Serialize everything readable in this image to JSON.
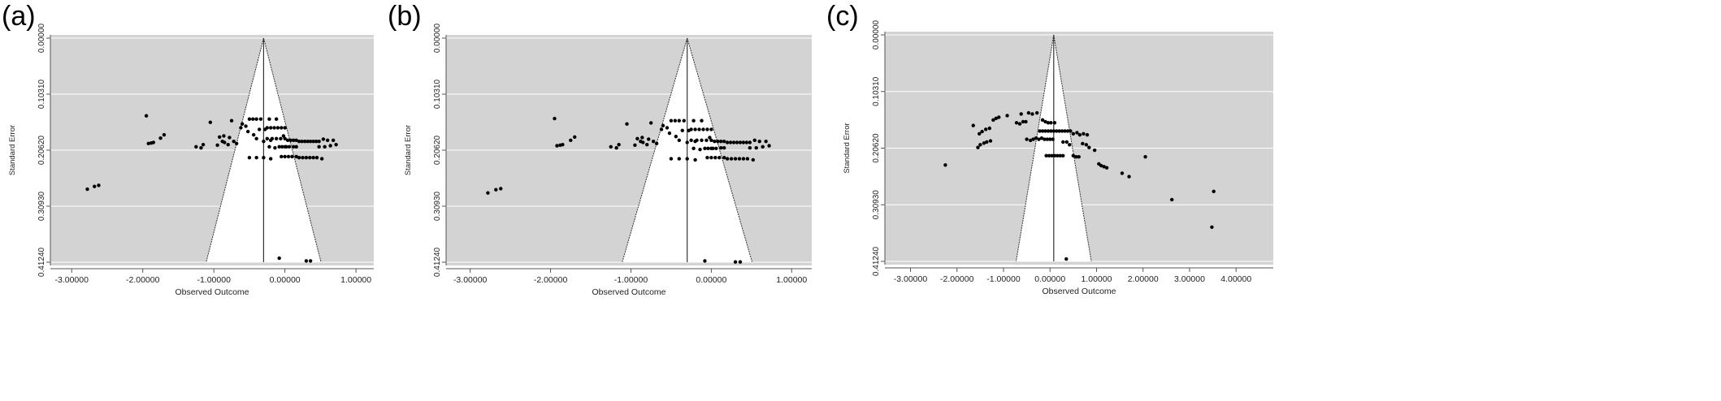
{
  "chart_data": [
    {
      "panel_label": "(a)",
      "type": "scatter",
      "subtype": "funnel plot",
      "xlabel": "Observed Outcome",
      "ylabel": "Standard Error",
      "xlim": [
        -3.3,
        1.25
      ],
      "ylim": [
        0.0,
        0.4124
      ],
      "y_reversed": true,
      "x_ticks": [
        "-3.00000",
        "-2.00000",
        "-1.00000",
        "0.00000",
        "1.00000"
      ],
      "x_tick_values": [
        -3,
        -2,
        -1,
        0,
        1
      ],
      "y_ticks": [
        "0.00000",
        "0.10310",
        "0.20620",
        "0.30930",
        "0.41240"
      ],
      "y_tick_values": [
        0,
        0.1031,
        0.2062,
        0.3093,
        0.4124
      ],
      "grid": true,
      "center": -0.3,
      "points": [
        [
          -2.78,
          0.278
        ],
        [
          -2.68,
          0.273
        ],
        [
          -2.62,
          0.271
        ],
        [
          -1.92,
          0.194
        ],
        [
          -1.88,
          0.193
        ],
        [
          -1.85,
          0.192
        ],
        [
          -1.95,
          0.143
        ],
        [
          -1.75,
          0.184
        ],
        [
          -1.7,
          0.178
        ],
        [
          -1.25,
          0.2
        ],
        [
          -1.18,
          0.202
        ],
        [
          -1.15,
          0.196
        ],
        [
          -1.05,
          0.155
        ],
        [
          -0.95,
          0.197
        ],
        [
          -0.88,
          0.19
        ],
        [
          -0.85,
          0.192
        ],
        [
          -0.8,
          0.196
        ],
        [
          -0.75,
          0.152
        ],
        [
          -0.72,
          0.19
        ],
        [
          -0.68,
          0.194
        ],
        [
          -0.92,
          0.182
        ],
        [
          -0.86,
          0.18
        ],
        [
          -0.78,
          0.183
        ],
        [
          -0.62,
          0.165
        ],
        [
          -0.55,
          0.162
        ],
        [
          -0.5,
          0.149
        ],
        [
          -0.45,
          0.149
        ],
        [
          -0.4,
          0.149
        ],
        [
          -0.34,
          0.149
        ],
        [
          -0.22,
          0.149
        ],
        [
          -0.12,
          0.149
        ],
        [
          -0.4,
          0.185
        ],
        [
          -0.3,
          0.19
        ],
        [
          -0.2,
          0.188
        ],
        [
          -0.5,
          0.22
        ],
        [
          -0.4,
          0.22
        ],
        [
          -0.3,
          0.22
        ],
        [
          -0.2,
          0.222
        ],
        [
          -0.6,
          0.158
        ],
        [
          -0.52,
          0.172
        ],
        [
          -0.44,
          0.178
        ],
        [
          -0.36,
          0.168
        ],
        [
          -0.28,
          0.168
        ],
        [
          -0.25,
          0.165
        ],
        [
          -0.2,
          0.165
        ],
        [
          -0.15,
          0.165
        ],
        [
          -0.1,
          0.165
        ],
        [
          -0.05,
          0.165
        ],
        [
          0.0,
          0.165
        ],
        [
          -0.25,
          0.185
        ],
        [
          -0.18,
          0.185
        ],
        [
          -0.12,
          0.185
        ],
        [
          -0.06,
          0.185
        ],
        [
          0.0,
          0.185
        ],
        [
          -0.22,
          0.2
        ],
        [
          -0.14,
          0.202
        ],
        [
          -0.08,
          0.2
        ],
        [
          -0.04,
          0.2
        ],
        [
          0.0,
          0.2
        ],
        [
          0.02,
          0.2
        ],
        [
          0.06,
          0.2
        ],
        [
          -0.02,
          0.18
        ],
        [
          0.04,
          0.188
        ],
        [
          0.08,
          0.188
        ],
        [
          0.12,
          0.188
        ],
        [
          0.16,
          0.188
        ],
        [
          0.2,
          0.19
        ],
        [
          0.24,
          0.19
        ],
        [
          0.28,
          0.19
        ],
        [
          0.32,
          0.19
        ],
        [
          0.36,
          0.19
        ],
        [
          0.4,
          0.19
        ],
        [
          0.44,
          0.19
        ],
        [
          0.48,
          0.19
        ],
        [
          -0.05,
          0.218
        ],
        [
          0.0,
          0.218
        ],
        [
          0.05,
          0.218
        ],
        [
          0.1,
          0.218
        ],
        [
          0.16,
          0.218
        ],
        [
          0.2,
          0.22
        ],
        [
          0.25,
          0.22
        ],
        [
          0.3,
          0.22
        ],
        [
          0.35,
          0.22
        ],
        [
          0.4,
          0.22
        ],
        [
          0.45,
          0.22
        ],
        [
          0.52,
          0.222
        ],
        [
          0.54,
          0.186
        ],
        [
          0.6,
          0.188
        ],
        [
          0.64,
          0.198
        ],
        [
          0.68,
          0.188
        ],
        [
          0.72,
          0.196
        ],
        [
          0.56,
          0.2
        ],
        [
          0.48,
          0.2
        ],
        [
          0.12,
          0.2
        ],
        [
          0.16,
          0.2
        ],
        [
          -0.08,
          0.405
        ],
        [
          0.3,
          0.41
        ],
        [
          0.36,
          0.41
        ]
      ]
    },
    {
      "panel_label": "(b)",
      "type": "scatter",
      "subtype": "funnel plot",
      "xlabel": "Observed Outcome",
      "ylabel": "Standard Error",
      "xlim": [
        -3.3,
        1.25
      ],
      "ylim": [
        0.0,
        0.4124
      ],
      "y_reversed": true,
      "x_ticks": [
        "-3.00000",
        "-2.00000",
        "-1.00000",
        "0.00000",
        "1.00000"
      ],
      "x_tick_values": [
        -3,
        -2,
        -1,
        0,
        1
      ],
      "y_ticks": [
        "0.00000",
        "0.10310",
        "0.20620",
        "0.30930",
        "0.41240"
      ],
      "y_tick_values": [
        0,
        0.1031,
        0.2062,
        0.3093,
        0.4124
      ],
      "grid": true,
      "center": -0.3,
      "points": [
        [
          -2.78,
          0.285
        ],
        [
          -2.68,
          0.279
        ],
        [
          -2.62,
          0.277
        ],
        [
          -1.92,
          0.198
        ],
        [
          -1.88,
          0.197
        ],
        [
          -1.85,
          0.196
        ],
        [
          -1.95,
          0.148
        ],
        [
          -1.75,
          0.188
        ],
        [
          -1.7,
          0.182
        ],
        [
          -1.25,
          0.2
        ],
        [
          -1.18,
          0.202
        ],
        [
          -1.15,
          0.196
        ],
        [
          -1.05,
          0.158
        ],
        [
          -0.95,
          0.197
        ],
        [
          -0.88,
          0.19
        ],
        [
          -0.85,
          0.192
        ],
        [
          -0.8,
          0.196
        ],
        [
          -0.75,
          0.156
        ],
        [
          -0.72,
          0.19
        ],
        [
          -0.68,
          0.194
        ],
        [
          -0.92,
          0.185
        ],
        [
          -0.86,
          0.183
        ],
        [
          -0.78,
          0.186
        ],
        [
          -0.62,
          0.168
        ],
        [
          -0.55,
          0.165
        ],
        [
          -0.5,
          0.152
        ],
        [
          -0.45,
          0.152
        ],
        [
          -0.4,
          0.152
        ],
        [
          -0.34,
          0.152
        ],
        [
          -0.22,
          0.152
        ],
        [
          -0.12,
          0.152
        ],
        [
          -0.4,
          0.188
        ],
        [
          -0.3,
          0.192
        ],
        [
          -0.2,
          0.19
        ],
        [
          -0.5,
          0.222
        ],
        [
          -0.4,
          0.222
        ],
        [
          -0.3,
          0.222
        ],
        [
          -0.2,
          0.224
        ],
        [
          -0.6,
          0.161
        ],
        [
          -0.52,
          0.175
        ],
        [
          -0.44,
          0.181
        ],
        [
          -0.36,
          0.17
        ],
        [
          -0.28,
          0.17
        ],
        [
          -0.25,
          0.168
        ],
        [
          -0.2,
          0.168
        ],
        [
          -0.15,
          0.168
        ],
        [
          -0.1,
          0.168
        ],
        [
          -0.05,
          0.168
        ],
        [
          0.0,
          0.168
        ],
        [
          -0.25,
          0.188
        ],
        [
          -0.18,
          0.188
        ],
        [
          -0.12,
          0.188
        ],
        [
          -0.06,
          0.188
        ],
        [
          0.0,
          0.188
        ],
        [
          -0.22,
          0.203
        ],
        [
          -0.14,
          0.205
        ],
        [
          -0.08,
          0.203
        ],
        [
          -0.04,
          0.203
        ],
        [
          0.0,
          0.203
        ],
        [
          0.02,
          0.203
        ],
        [
          0.06,
          0.203
        ],
        [
          -0.02,
          0.183
        ],
        [
          0.04,
          0.19
        ],
        [
          0.08,
          0.19
        ],
        [
          0.12,
          0.19
        ],
        [
          0.16,
          0.19
        ],
        [
          0.2,
          0.192
        ],
        [
          0.24,
          0.192
        ],
        [
          0.28,
          0.192
        ],
        [
          0.32,
          0.192
        ],
        [
          0.36,
          0.192
        ],
        [
          0.4,
          0.192
        ],
        [
          0.44,
          0.192
        ],
        [
          0.48,
          0.192
        ],
        [
          -0.05,
          0.22
        ],
        [
          0.0,
          0.22
        ],
        [
          0.05,
          0.22
        ],
        [
          0.1,
          0.22
        ],
        [
          0.16,
          0.22
        ],
        [
          0.2,
          0.222
        ],
        [
          0.25,
          0.222
        ],
        [
          0.3,
          0.222
        ],
        [
          0.35,
          0.222
        ],
        [
          0.4,
          0.222
        ],
        [
          0.45,
          0.222
        ],
        [
          0.52,
          0.224
        ],
        [
          0.54,
          0.188
        ],
        [
          0.6,
          0.19
        ],
        [
          0.64,
          0.2
        ],
        [
          0.68,
          0.19
        ],
        [
          0.72,
          0.198
        ],
        [
          0.56,
          0.202
        ],
        [
          0.48,
          0.202
        ],
        [
          0.12,
          0.202
        ],
        [
          0.16,
          0.202
        ],
        [
          -0.08,
          0.41
        ],
        [
          0.3,
          0.412
        ],
        [
          0.36,
          0.412
        ]
      ]
    },
    {
      "panel_label": "(c)",
      "type": "scatter",
      "subtype": "funnel plot",
      "xlabel": "Observed Outcome",
      "ylabel": "Standard Error",
      "xlim": [
        -3.55,
        4.8
      ],
      "ylim": [
        0.0,
        0.4124
      ],
      "y_reversed": true,
      "x_ticks": [
        "-3.00000",
        "-2.00000",
        "-1.00000",
        "0.00000",
        "1.00000",
        "2.00000",
        "3.00000",
        "4.00000"
      ],
      "x_tick_values": [
        -3,
        -2,
        -1,
        0,
        1,
        2,
        3,
        4
      ],
      "y_ticks": [
        "0.00000",
        "0.10310",
        "0.20620",
        "0.30930",
        "0.41240"
      ],
      "y_tick_values": [
        0,
        0.1031,
        0.2062,
        0.3093,
        0.4124
      ],
      "grid": true,
      "center": 0.08,
      "points": [
        [
          -2.25,
          0.237
        ],
        [
          -1.65,
          0.165
        ],
        [
          -1.55,
          0.205
        ],
        [
          -1.5,
          0.2
        ],
        [
          -1.42,
          0.197
        ],
        [
          -1.36,
          0.195
        ],
        [
          -1.28,
          0.193
        ],
        [
          -1.52,
          0.18
        ],
        [
          -1.46,
          0.176
        ],
        [
          -1.38,
          0.172
        ],
        [
          -1.3,
          0.17
        ],
        [
          -1.22,
          0.155
        ],
        [
          -1.16,
          0.152
        ],
        [
          -1.1,
          0.15
        ],
        [
          -0.92,
          0.147
        ],
        [
          -0.72,
          0.16
        ],
        [
          -0.65,
          0.162
        ],
        [
          -0.58,
          0.158
        ],
        [
          -0.52,
          0.158
        ],
        [
          -0.46,
          0.142
        ],
        [
          -0.38,
          0.144
        ],
        [
          -0.28,
          0.142
        ],
        [
          -0.62,
          0.144
        ],
        [
          -0.5,
          0.19
        ],
        [
          -0.42,
          0.192
        ],
        [
          -0.36,
          0.19
        ],
        [
          -0.3,
          0.188
        ],
        [
          -0.24,
          0.19
        ],
        [
          -0.18,
          0.188
        ],
        [
          -0.12,
          0.19
        ],
        [
          -0.06,
          0.19
        ],
        [
          0.0,
          0.19
        ],
        [
          0.06,
          0.19
        ],
        [
          -0.16,
          0.155
        ],
        [
          -0.1,
          0.158
        ],
        [
          -0.04,
          0.16
        ],
        [
          0.02,
          0.16
        ],
        [
          0.1,
          0.16
        ],
        [
          -0.22,
          0.175
        ],
        [
          -0.16,
          0.175
        ],
        [
          -0.1,
          0.175
        ],
        [
          -0.04,
          0.175
        ],
        [
          0.02,
          0.175
        ],
        [
          0.08,
          0.175
        ],
        [
          0.14,
          0.175
        ],
        [
          0.2,
          0.175
        ],
        [
          0.26,
          0.175
        ],
        [
          0.32,
          0.175
        ],
        [
          0.38,
          0.175
        ],
        [
          0.44,
          0.175
        ],
        [
          0.28,
          0.195
        ],
        [
          0.36,
          0.195
        ],
        [
          0.42,
          0.2
        ],
        [
          0.5,
          0.18
        ],
        [
          0.58,
          0.178
        ],
        [
          0.64,
          0.182
        ],
        [
          0.72,
          0.18
        ],
        [
          0.8,
          0.182
        ],
        [
          -0.08,
          0.22
        ],
        [
          -0.02,
          0.22
        ],
        [
          0.04,
          0.22
        ],
        [
          0.1,
          0.22
        ],
        [
          0.16,
          0.22
        ],
        [
          0.22,
          0.22
        ],
        [
          0.28,
          0.22
        ],
        [
          0.5,
          0.22
        ],
        [
          0.56,
          0.222
        ],
        [
          0.62,
          0.222
        ],
        [
          0.7,
          0.198
        ],
        [
          0.78,
          0.2
        ],
        [
          0.84,
          0.205
        ],
        [
          0.96,
          0.21
        ],
        [
          1.05,
          0.235
        ],
        [
          1.1,
          0.238
        ],
        [
          1.16,
          0.24
        ],
        [
          1.22,
          0.242
        ],
        [
          1.55,
          0.252
        ],
        [
          1.7,
          0.258
        ],
        [
          2.05,
          0.222
        ],
        [
          2.62,
          0.3
        ],
        [
          3.52,
          0.285
        ],
        [
          3.48,
          0.35
        ],
        [
          0.35,
          0.408
        ]
      ]
    }
  ]
}
